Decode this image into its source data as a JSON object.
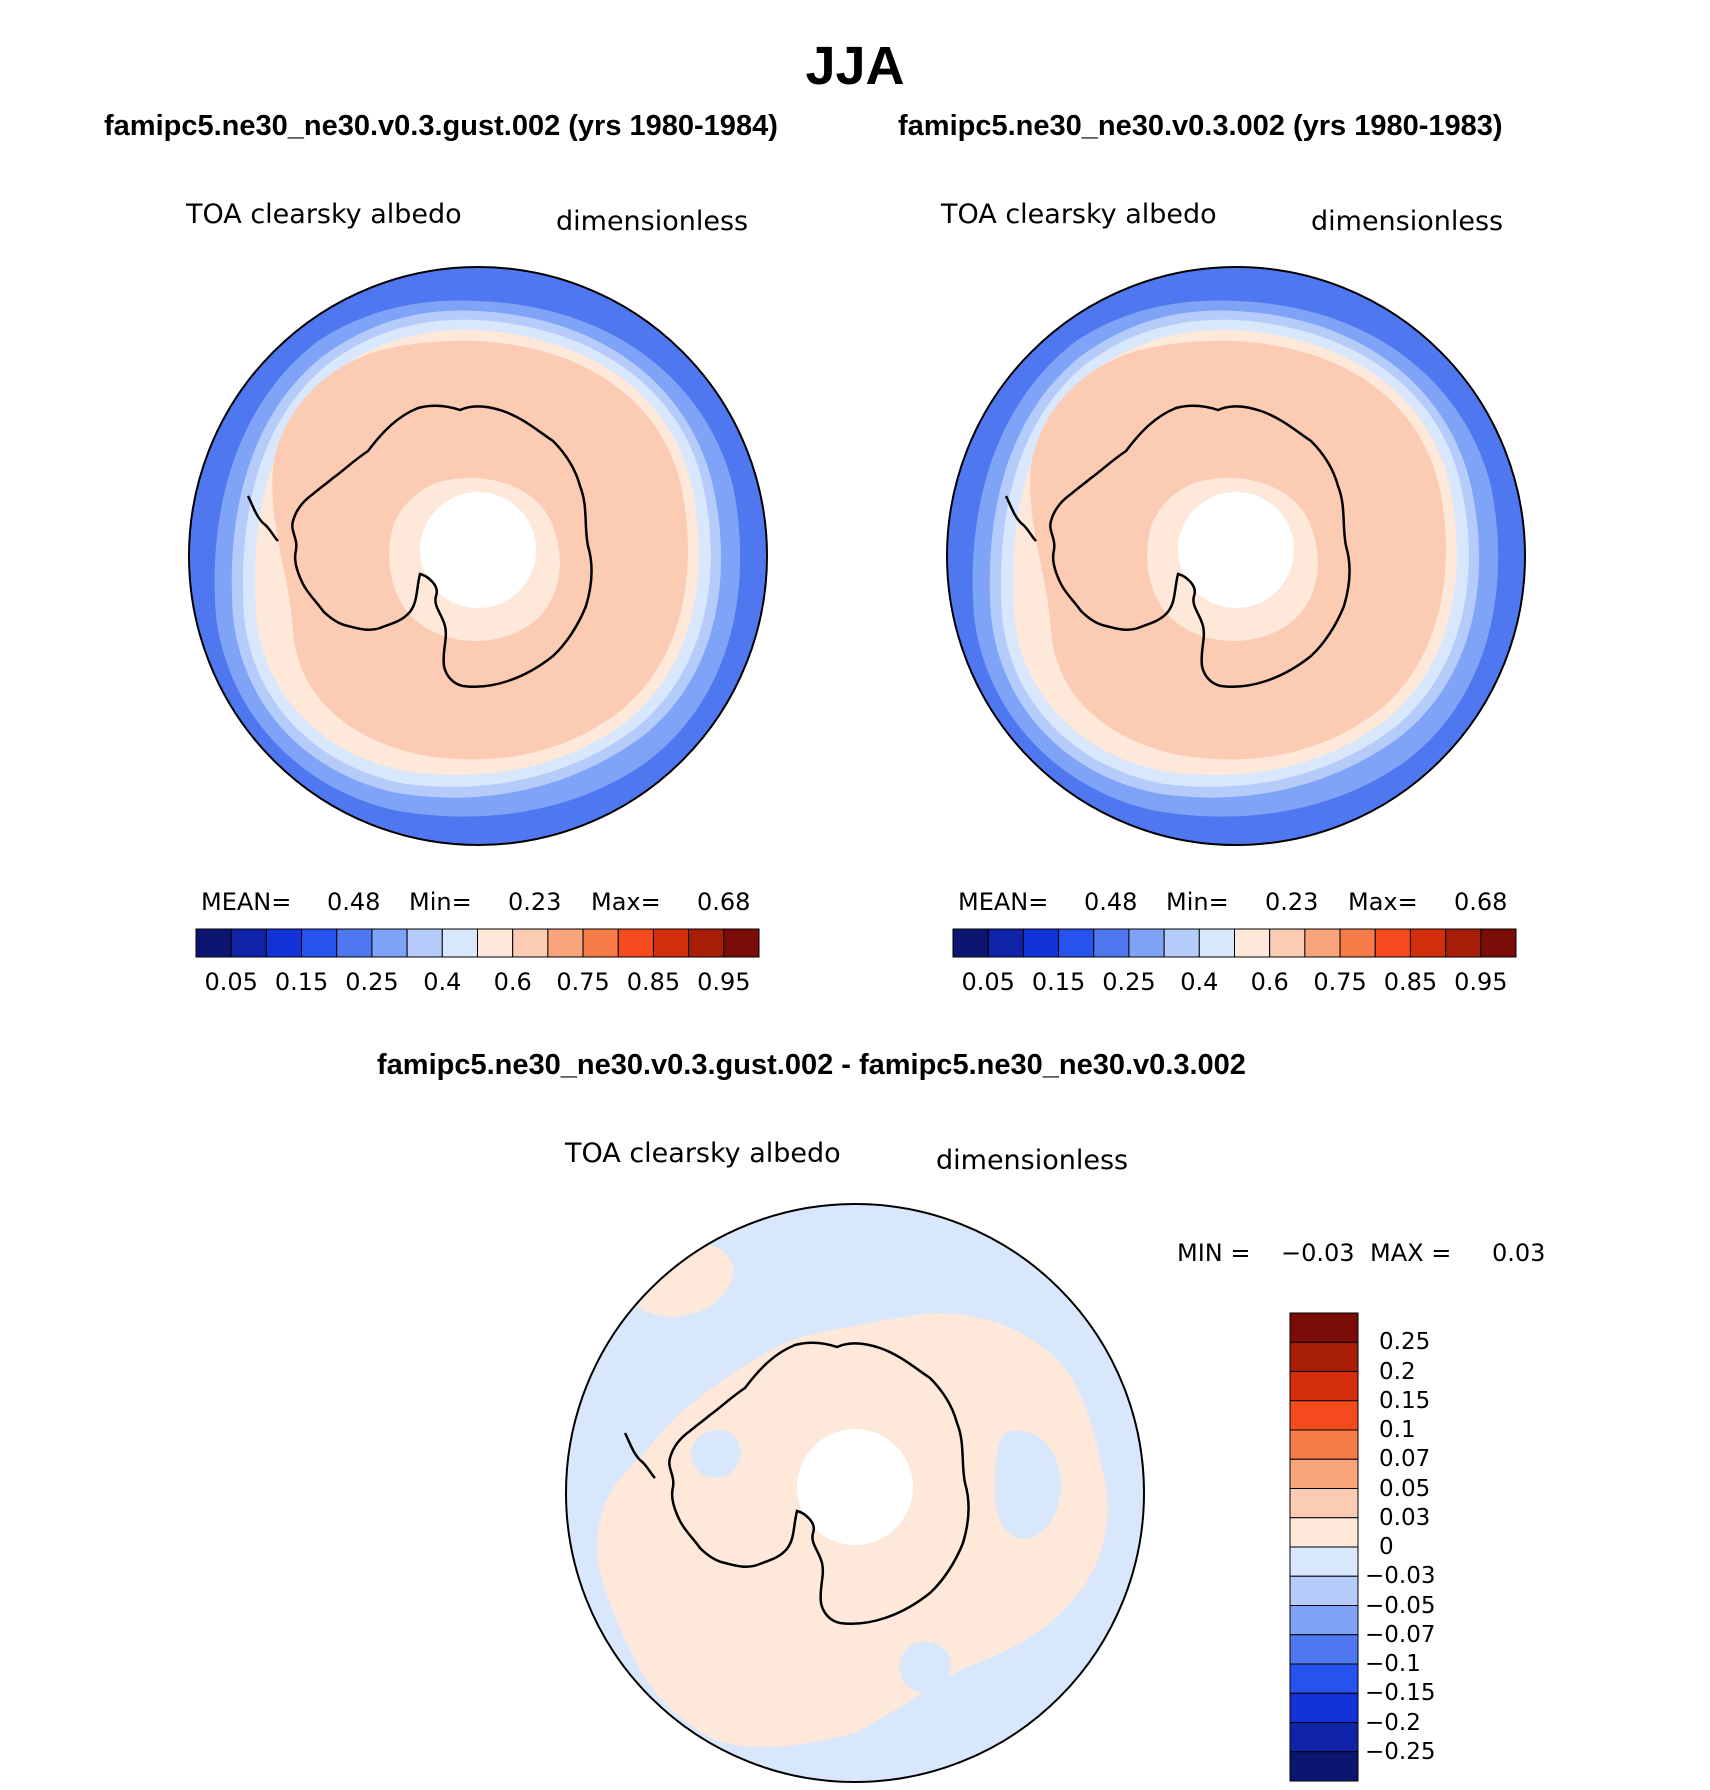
{
  "page": {
    "title": "JJA"
  },
  "panels": {
    "left": {
      "case_title": "famipc5.ne30_ne30.v0.3.gust.002 (yrs 1980-1984)",
      "var_label": "TOA clearsky albedo",
      "units": "dimensionless",
      "stats": {
        "mean_label": "MEAN=",
        "mean_value": "0.48",
        "min_label": "Min=",
        "min_value": "0.23",
        "max_label": "Max=",
        "max_value": "0.68"
      }
    },
    "right": {
      "case_title": "famipc5.ne30_ne30.v0.3.002 (yrs 1980-1983)",
      "var_label": "TOA clearsky albedo",
      "units": "dimensionless",
      "stats": {
        "mean_label": "MEAN=",
        "mean_value": "0.48",
        "min_label": "Min=",
        "min_value": "0.23",
        "max_label": "Max=",
        "max_value": "0.68"
      }
    },
    "diff": {
      "case_title": "famipc5.ne30_ne30.v0.3.gust.002 - famipc5.ne30_ne30.v0.3.002",
      "var_label": "TOA clearsky albedo",
      "units": "dimensionless",
      "stats": {
        "min_label": "MIN =",
        "min_value": "−0.03",
        "max_label": "MAX =",
        "max_value": "0.03"
      }
    }
  },
  "colors": {
    "albedo_scale": [
      "#0c1670",
      "#0e23a8",
      "#1233d8",
      "#2852f0",
      "#4f78f0",
      "#7fa4f7",
      "#b5cbfa",
      "#d8e7fb",
      "#fde8da",
      "#fbcbb3",
      "#f9a47c",
      "#f87c48",
      "#f54a1e",
      "#d42e0c",
      "#a81d08",
      "#7c0c08"
    ],
    "diff_scale": [
      "#0c1670",
      "#0e23a8",
      "#1233d8",
      "#2852f0",
      "#4f78f0",
      "#7fa4f7",
      "#b5cbfa",
      "#d8e7fb",
      "#fde8da",
      "#fbcbb3",
      "#f9a47c",
      "#f87c48",
      "#f54a1e",
      "#d42e0c",
      "#a81d08",
      "#7c0c08"
    ],
    "land_outline": "#000000",
    "missing": "#ffffff"
  },
  "chart_data": [
    {
      "type": "heatmap",
      "projection": "south-polar-stereographic",
      "title": "famipc5.ne30_ne30.v0.3.gust.002 (yrs 1980-1984)",
      "variable": "TOA clearsky albedo",
      "units": "dimensionless",
      "mean": 0.48,
      "min": 0.23,
      "max": 0.68,
      "contour_levels": [
        0.05,
        0.1,
        0.15,
        0.2,
        0.25,
        0.3,
        0.4,
        0.5,
        0.6,
        0.7,
        0.75,
        0.8,
        0.85,
        0.9,
        0.95
      ],
      "colorbar_tick_labels": [
        "0.05",
        "0.15",
        "0.25",
        "0.4",
        "0.6",
        "0.75",
        "0.85",
        "0.95"
      ]
    },
    {
      "type": "heatmap",
      "projection": "south-polar-stereographic",
      "title": "famipc5.ne30_ne30.v0.3.002 (yrs 1980-1983)",
      "variable": "TOA clearsky albedo",
      "units": "dimensionless",
      "mean": 0.48,
      "min": 0.23,
      "max": 0.68,
      "contour_levels": [
        0.05,
        0.1,
        0.15,
        0.2,
        0.25,
        0.3,
        0.4,
        0.5,
        0.6,
        0.7,
        0.75,
        0.8,
        0.85,
        0.9,
        0.95
      ],
      "colorbar_tick_labels": [
        "0.05",
        "0.15",
        "0.25",
        "0.4",
        "0.6",
        "0.75",
        "0.85",
        "0.95"
      ]
    },
    {
      "type": "heatmap",
      "projection": "south-polar-stereographic",
      "title": "famipc5.ne30_ne30.v0.3.gust.002 - famipc5.ne30_ne30.v0.3.002",
      "variable": "TOA clearsky albedo",
      "units": "dimensionless",
      "min": -0.03,
      "max": 0.03,
      "contour_levels": [
        -0.25,
        -0.2,
        -0.15,
        -0.1,
        -0.07,
        -0.05,
        -0.03,
        0,
        0.03,
        0.05,
        0.07,
        0.1,
        0.15,
        0.2,
        0.25
      ],
      "colorbar_tick_labels": [
        "0.25",
        "0.2",
        "0.15",
        "0.1",
        "0.07",
        "0.05",
        "0.03",
        "0",
        "−0.03",
        "−0.05",
        "−0.07",
        "−0.1",
        "−0.15",
        "−0.2",
        "−0.25"
      ]
    }
  ]
}
